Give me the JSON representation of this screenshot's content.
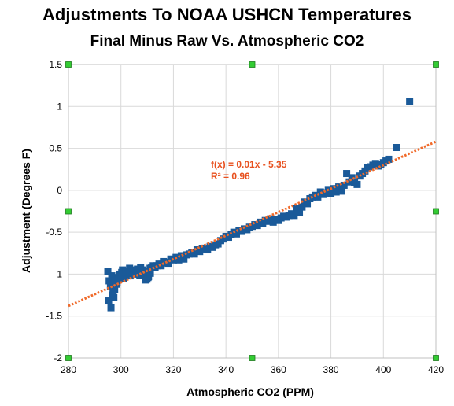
{
  "chart_data": {
    "type": "scatter",
    "title": "Adjustments To NOAA USHCN Temperatures",
    "subtitle": "Final Minus Raw Vs. Atmospheric CO2",
    "xlabel": "Atmospheric CO2 (PPM)",
    "ylabel": "Adjustment (Degrees F)",
    "xlim": [
      280,
      420
    ],
    "ylim": [
      -2,
      1.5
    ],
    "x_ticks": [
      280,
      300,
      320,
      340,
      360,
      380,
      400,
      420
    ],
    "y_ticks": [
      1.5,
      1,
      0.5,
      0,
      -0.5,
      -1,
      -1.5,
      -2
    ],
    "grid": true,
    "colors": {
      "points": "#1a5a99",
      "trendline": "#f06a2a",
      "grid": "#d9d9d9",
      "handles": "#33cc33"
    },
    "trendline": {
      "label_equation": "f(x) = 0.01x - 5.35",
      "label_r2": "R² = 0.96",
      "x": [
        280,
        420
      ],
      "y": [
        -1.38,
        0.58
      ]
    },
    "series": [
      {
        "x": [
          295.0,
          295.5,
          296.0,
          296.5,
          297.0,
          297.3,
          297.8,
          298.3,
          299.0,
          299.5,
          300.0,
          300.6,
          301.1,
          301.6,
          302.2,
          302.7,
          303.3,
          303.9,
          304.5,
          305.1,
          305.7,
          306.3,
          306.9,
          307.5,
          308.1,
          308.7,
          309.3,
          309.9,
          310.5,
          311.1,
          311.7,
          312.3,
          313.0,
          313.7,
          314.5,
          315.3,
          316.2,
          317.0,
          318.0,
          319.0,
          320.0,
          321.0,
          322.0,
          323.0,
          324.0,
          325.0,
          326.0,
          327.0,
          328.0,
          329.0,
          330.0,
          331.0,
          332.0,
          333.0,
          334.0,
          335.0,
          336.0,
          337.0,
          338.0,
          339.0,
          340.0,
          341.0,
          342.0,
          343.0,
          344.0,
          345.0,
          346.0,
          347.0,
          348.0,
          349.0,
          350.0,
          351.0,
          352.0,
          353.0,
          354.0,
          355.0,
          356.0,
          357.0,
          358.0,
          359.0,
          360.0,
          361.0,
          362.0,
          363.0,
          364.0,
          365.0,
          366.0,
          367.0,
          368.0,
          369.0,
          370.0,
          371.0,
          372.0,
          373.0,
          374.0,
          375.0,
          376.0,
          377.0,
          378.0,
          379.0,
          380.0,
          381.0,
          382.0,
          383.0,
          384.0,
          385.0,
          386.0,
          387.0,
          388.0,
          389.0,
          390.0,
          391.0,
          392.0,
          393.0,
          394.0,
          395.0,
          396.0,
          397.0,
          398.0,
          399.0,
          400.0,
          401.0,
          402.0,
          405.0,
          410.0,
          295.3,
          296.2,
          296.8,
          297.6,
          298.5,
          300.3,
          301.8,
          303.5,
          305.2,
          307.2,
          309.5,
          310.3,
          311.2
        ],
        "y": [
          -0.97,
          -1.08,
          -1.15,
          -1.02,
          -1.22,
          -1.28,
          -1.04,
          -1.12,
          -1.06,
          -1.0,
          -1.02,
          -0.95,
          -1.05,
          -1.0,
          -0.98,
          -1.02,
          -0.93,
          -0.98,
          -0.95,
          -0.97,
          -1.0,
          -0.94,
          -0.96,
          -0.92,
          -0.95,
          -0.97,
          -1.05,
          -1.06,
          -1.03,
          -0.93,
          -0.92,
          -0.9,
          -0.92,
          -0.9,
          -0.88,
          -0.9,
          -0.85,
          -0.86,
          -0.87,
          -0.82,
          -0.83,
          -0.8,
          -0.83,
          -0.78,
          -0.82,
          -0.77,
          -0.76,
          -0.74,
          -0.76,
          -0.71,
          -0.73,
          -0.7,
          -0.69,
          -0.71,
          -0.67,
          -0.68,
          -0.65,
          -0.64,
          -0.6,
          -0.58,
          -0.55,
          -0.56,
          -0.53,
          -0.5,
          -0.52,
          -0.48,
          -0.49,
          -0.46,
          -0.47,
          -0.44,
          -0.43,
          -0.41,
          -0.42,
          -0.38,
          -0.4,
          -0.36,
          -0.37,
          -0.34,
          -0.38,
          -0.35,
          -0.36,
          -0.33,
          -0.31,
          -0.32,
          -0.3,
          -0.28,
          -0.3,
          -0.22,
          -0.26,
          -0.2,
          -0.14,
          -0.16,
          -0.1,
          -0.08,
          -0.06,
          -0.08,
          -0.02,
          -0.05,
          -0.03,
          0.0,
          -0.04,
          0.02,
          -0.02,
          0.04,
          -0.01,
          0.06,
          0.2,
          0.1,
          0.15,
          0.09,
          0.07,
          0.17,
          0.2,
          0.23,
          0.27,
          0.28,
          0.3,
          0.32,
          0.29,
          0.31,
          0.33,
          0.35,
          0.37,
          0.51,
          1.06,
          -1.32,
          -1.4,
          -1.25,
          -1.18,
          -1.1,
          -0.98,
          -0.97,
          -1.02,
          -0.99,
          -1.01,
          -1.07,
          -1.04,
          -0.99
        ]
      }
    ]
  }
}
